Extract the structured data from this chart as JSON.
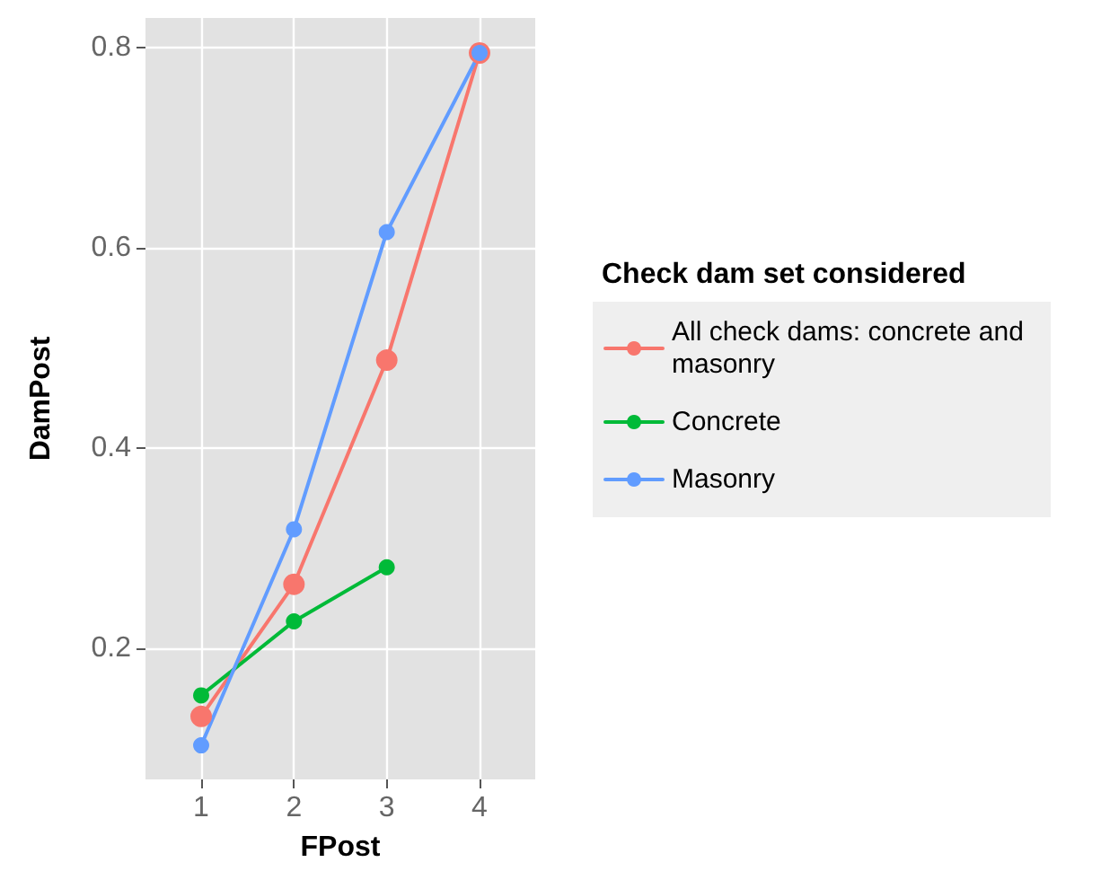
{
  "chart_data": {
    "type": "line",
    "xlabel": "FPost",
    "ylabel": "DamPost",
    "legend_title": "Check dam set considered",
    "x": [
      1,
      2,
      3,
      4
    ],
    "series": [
      {
        "name": "All check dams: concrete and masonry",
        "color": "#f8766d",
        "values": [
          0.132,
          0.264,
          0.488,
          0.795
        ]
      },
      {
        "name": "Concrete",
        "color": "#00ba38",
        "values": [
          0.153,
          0.227,
          0.281,
          null
        ]
      },
      {
        "name": "Masonry",
        "color": "#619cff",
        "values": [
          0.103,
          0.319,
          0.616,
          0.795
        ]
      }
    ],
    "xlim": [
      0.4,
      4.6
    ],
    "ylim": [
      0.069,
      0.83
    ],
    "xticks": [
      1,
      2,
      3,
      4
    ],
    "yticks": [
      0.2,
      0.4,
      0.6,
      0.8
    ],
    "grid": true,
    "legend": "right",
    "marker": "circle",
    "line_style": "solid"
  }
}
